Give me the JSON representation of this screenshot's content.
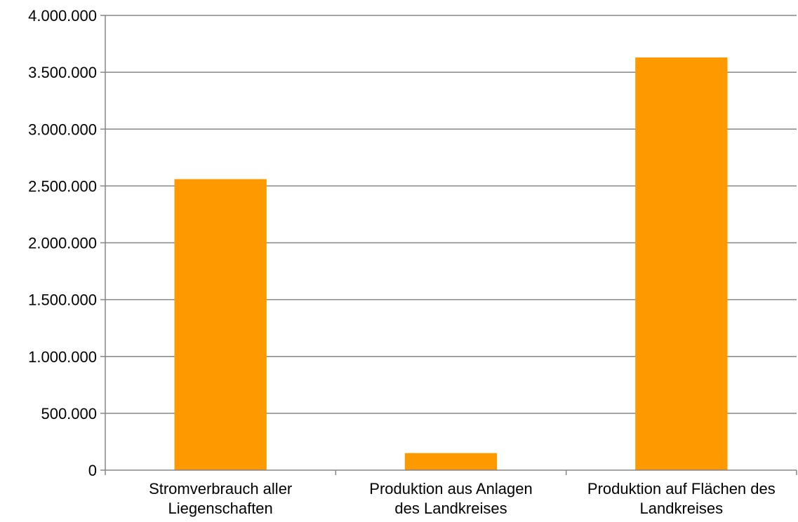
{
  "chart_data": {
    "type": "bar",
    "categories": [
      [
        "Stromverbrauch aller",
        "Liegenschaften"
      ],
      [
        "Produktion aus Anlagen",
        "des Landkreises"
      ],
      [
        "Produktion auf Flächen des",
        "Landkreises"
      ]
    ],
    "values": [
      2560000,
      150000,
      3630000
    ],
    "ylim": [
      0,
      4000000
    ],
    "y_ticks": [
      {
        "value": 0,
        "label": "0"
      },
      {
        "value": 500000,
        "label": "500.000"
      },
      {
        "value": 1000000,
        "label": "1.000.000"
      },
      {
        "value": 1500000,
        "label": "1.500.000"
      },
      {
        "value": 2000000,
        "label": "2.000.000"
      },
      {
        "value": 2500000,
        "label": "2.500.000"
      },
      {
        "value": 3000000,
        "label": "3.000.000"
      },
      {
        "value": 3500000,
        "label": "3.500.000"
      },
      {
        "value": 4000000,
        "label": "4.000.000"
      }
    ],
    "title": "",
    "xlabel": "",
    "ylabel": "",
    "grid": true,
    "legend": "none",
    "colors": {
      "bar": "#FF9900",
      "grid": "#868686",
      "axis": "#868686",
      "text": "#000000"
    }
  }
}
